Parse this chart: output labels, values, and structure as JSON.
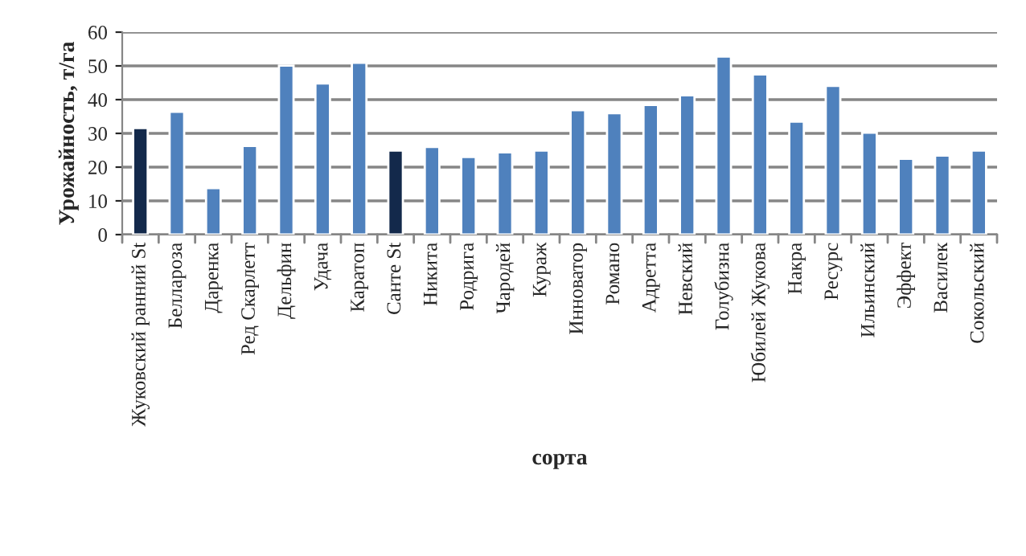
{
  "chart_data": {
    "type": "bar",
    "xlabel": "сорта",
    "ylabel": "Урожайность, т/га",
    "categories": [
      "Жуковский ранний St",
      "Беллароза",
      "Даренка",
      "Ред Скарлетт",
      "Дельфин",
      "Удача",
      "Каратоп",
      "Санте St",
      "Никита",
      "Родрига",
      "Чародей",
      "Кураж",
      "Инноватор",
      "Романо",
      "Адретта",
      "Невский",
      "Голубизна",
      "Юбилей Жукова",
      "Накра",
      "Ресурс",
      "Ильинский",
      "Эффект",
      "Василек",
      "Сокольский"
    ],
    "values": [
      31.6,
      36.4,
      13.8,
      26.3,
      50.1,
      44.8,
      50.9,
      24.9,
      26.0,
      23.0,
      24.4,
      24.9,
      36.9,
      36.0,
      38.4,
      41.3,
      52.8,
      47.5,
      33.5,
      44.1,
      30.2,
      22.5,
      23.4,
      24.9
    ],
    "colors": [
      "#13294b",
      "#4f81bd",
      "#4f81bd",
      "#4f81bd",
      "#4f81bd",
      "#4f81bd",
      "#4f81bd",
      "#13294b",
      "#4f81bd",
      "#4f81bd",
      "#4f81bd",
      "#4f81bd",
      "#4f81bd",
      "#4f81bd",
      "#4f81bd",
      "#4f81bd",
      "#4f81bd",
      "#4f81bd",
      "#4f81bd",
      "#4f81bd",
      "#4f81bd",
      "#4f81bd",
      "#4f81bd",
      "#4f81bd"
    ],
    "ylim": [
      0,
      60
    ],
    "yticks": [
      0,
      10,
      20,
      30,
      40,
      50,
      60
    ],
    "grid": "y",
    "legend": false
  }
}
